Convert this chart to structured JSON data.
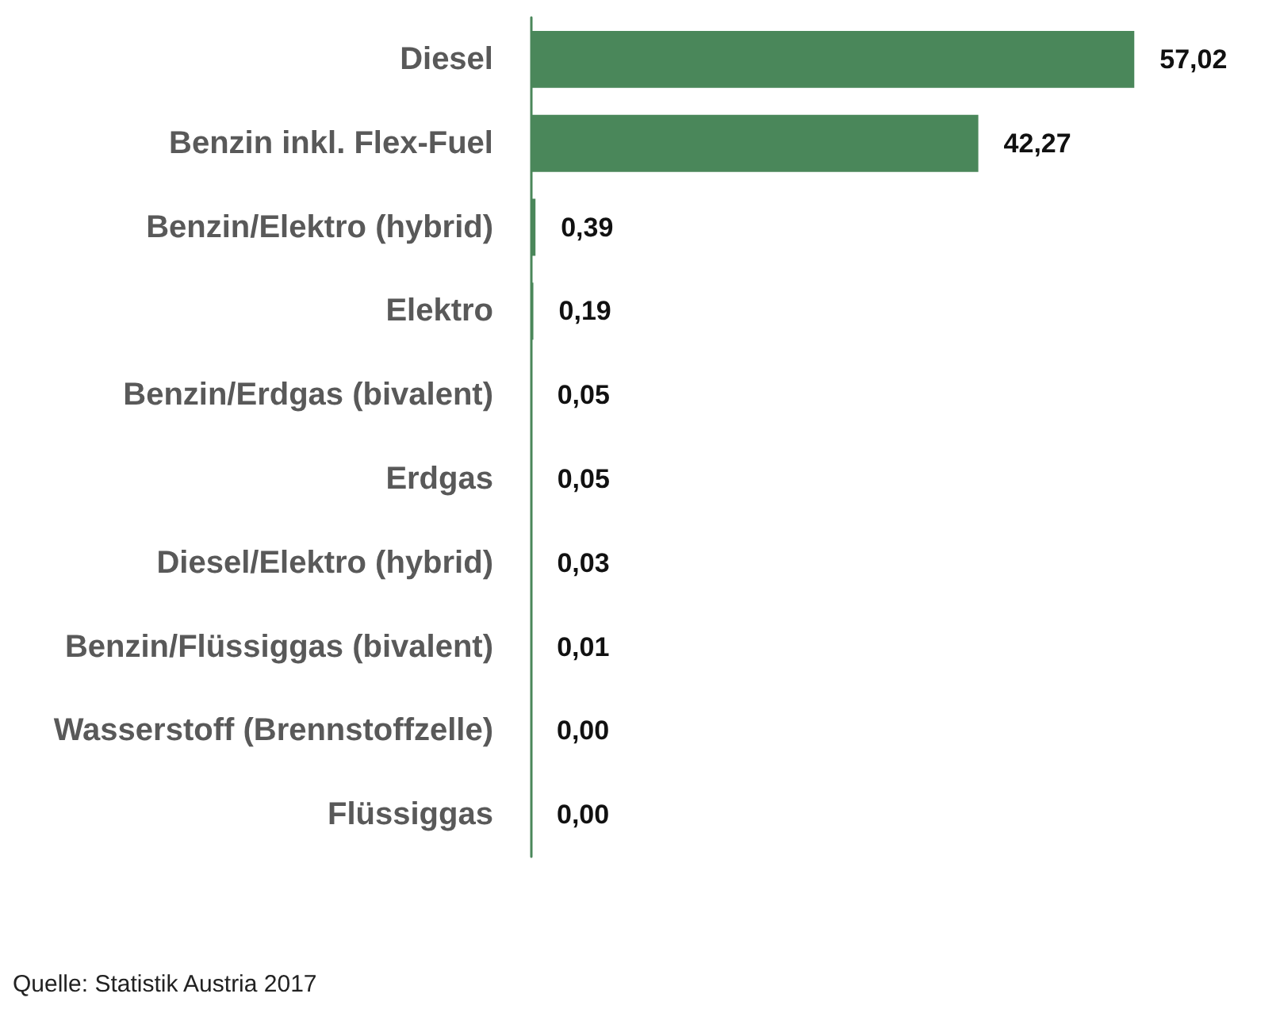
{
  "chart_data": {
    "type": "bar",
    "orientation": "horizontal",
    "categories": [
      "Diesel",
      "Benzin inkl. Flex-Fuel",
      "Benzin/Elektro (hybrid)",
      "Elektro",
      "Benzin/Erdgas (bivalent)",
      "Erdgas",
      "Diesel/Elektro (hybrid)",
      "Benzin/Flüssiggas (bivalent)",
      "Wasserstoff (Brennstoffzelle)",
      "Flüssiggas"
    ],
    "values": [
      57.02,
      42.27,
      0.39,
      0.19,
      0.05,
      0.05,
      0.03,
      0.01,
      0.0,
      0.0
    ],
    "value_labels": [
      "57,02",
      "42,27",
      "0,39",
      "0,19",
      "0,05",
      "0,05",
      "0,03",
      "0,01",
      "0,00",
      "0,00"
    ],
    "color": "#4a875a",
    "annotations": [
      "Quelle: Statistik Austria 2017"
    ]
  }
}
